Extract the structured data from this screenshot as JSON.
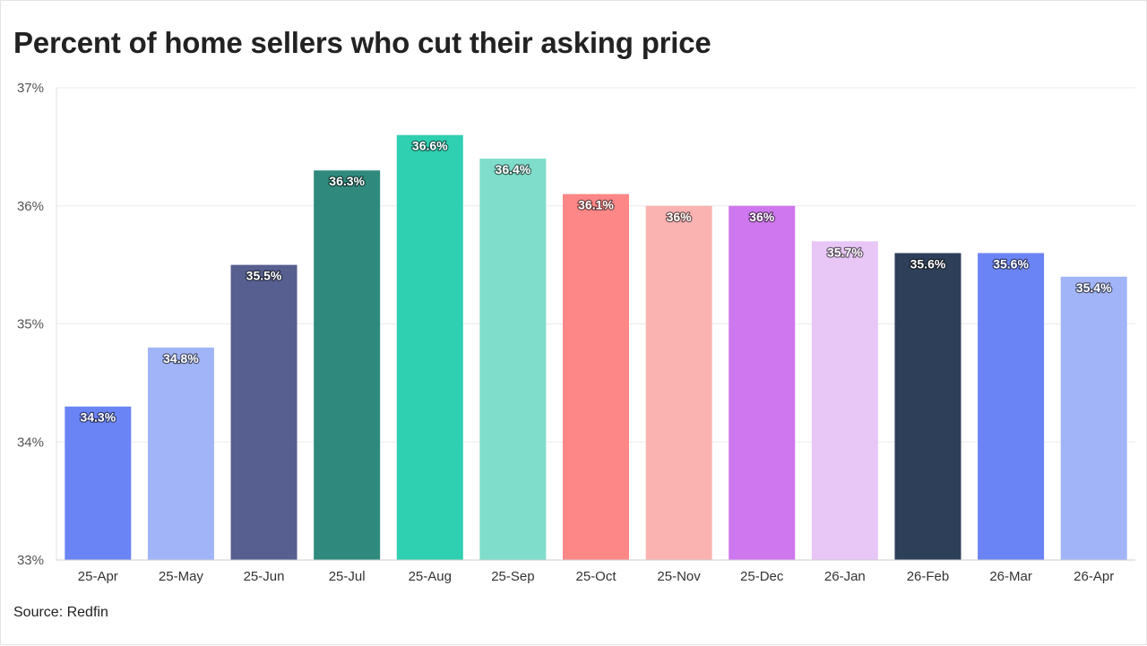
{
  "title": "Percent of home sellers who cut their asking price",
  "source": "Source: Redfin",
  "chart_data": {
    "type": "bar",
    "title": "Percent of home sellers who cut their asking price",
    "xlabel": "",
    "ylabel": "",
    "categories": [
      "25-Apr",
      "25-May",
      "25-Jun",
      "25-Jul",
      "25-Aug",
      "25-Sep",
      "25-Oct",
      "25-Nov",
      "25-Dec",
      "26-Jan",
      "26-Feb",
      "26-Mar",
      "26-Apr"
    ],
    "values": [
      34.3,
      34.8,
      35.5,
      36.3,
      36.6,
      36.4,
      36.1,
      36.0,
      36.0,
      35.7,
      35.6,
      35.6,
      35.4
    ],
    "data_labels": [
      "34.3%",
      "34.8%",
      "35.5%",
      "36.3%",
      "36.6%",
      "36.4%",
      "36.1%",
      "36%",
      "36%",
      "35.7%",
      "35.6%",
      "35.6%",
      "35.4%"
    ],
    "colors": [
      "#6b84f5",
      "#a1b4f7",
      "#575f90",
      "#2f8a7d",
      "#2fcfb1",
      "#7fdecb",
      "#fd8787",
      "#fbb3b2",
      "#cf77ee",
      "#e8c6f6",
      "#2e4059",
      "#6b84f5",
      "#a1b4f7"
    ],
    "ylim": [
      33,
      37
    ],
    "yticks": [
      33,
      34,
      35,
      36,
      37
    ],
    "ytick_labels": [
      "33%",
      "34%",
      "35%",
      "36%",
      "37%"
    ],
    "grid": true,
    "legend": "none"
  }
}
